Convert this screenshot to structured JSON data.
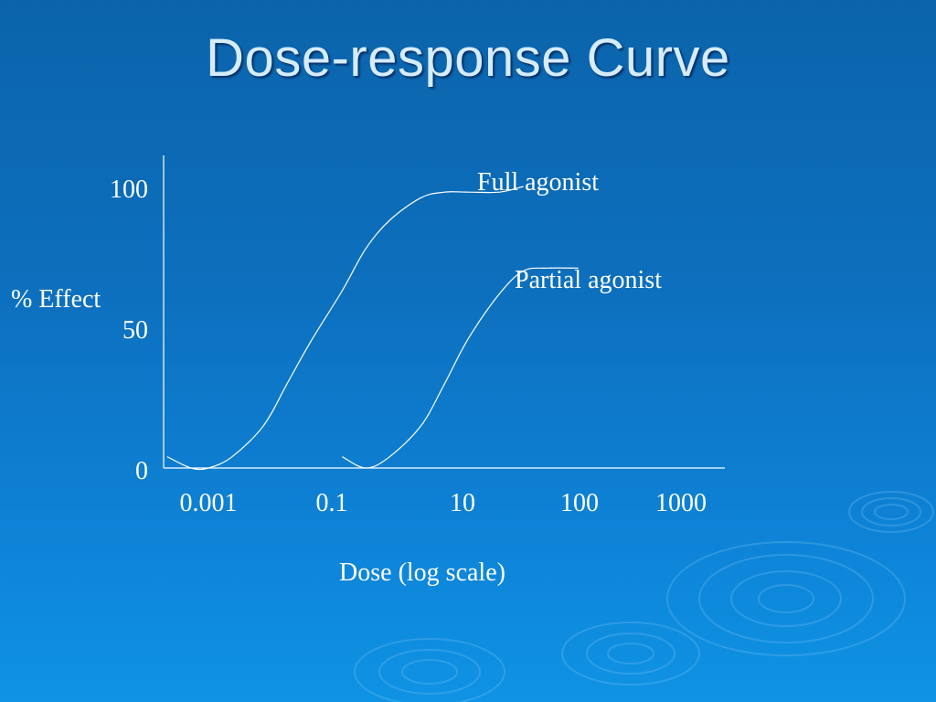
{
  "title": "Dose-response Curve",
  "chart_data": {
    "type": "line",
    "xlabel": "Dose (log scale)",
    "ylabel": "% Effect",
    "x_scale": "log",
    "x_ticks": [
      0.001,
      0.1,
      10,
      100,
      1000
    ],
    "x_tick_labels": [
      "0.001",
      "0.1",
      "10",
      "100",
      "1000"
    ],
    "y_ticks": [
      0,
      50,
      100
    ],
    "y_tick_labels": [
      "0",
      "50",
      "100"
    ],
    "ylim": [
      0,
      100
    ],
    "grid": false,
    "legend": "none",
    "series": [
      {
        "name": "Full agonist",
        "x": [
          0.0003,
          0.0006,
          0.001,
          0.002,
          0.005,
          0.01,
          0.02,
          0.05,
          0.1,
          0.2,
          0.5,
          1,
          2,
          5,
          10
        ],
        "y": [
          4,
          0,
          0,
          4,
          15,
          30,
          45,
          63,
          78,
          88,
          96,
          98,
          98,
          98,
          100
        ]
      },
      {
        "name": "Partial agonist",
        "x": [
          0.05,
          0.1,
          0.2,
          0.5,
          1,
          2,
          5,
          10,
          20,
          50
        ],
        "y": [
          4,
          0,
          4,
          15,
          30,
          46,
          62,
          70,
          71,
          71
        ]
      }
    ],
    "annotations": [
      {
        "text": "Full agonist",
        "series": "Full agonist"
      },
      {
        "text": "Partial agonist",
        "series": "Partial agonist"
      }
    ]
  }
}
